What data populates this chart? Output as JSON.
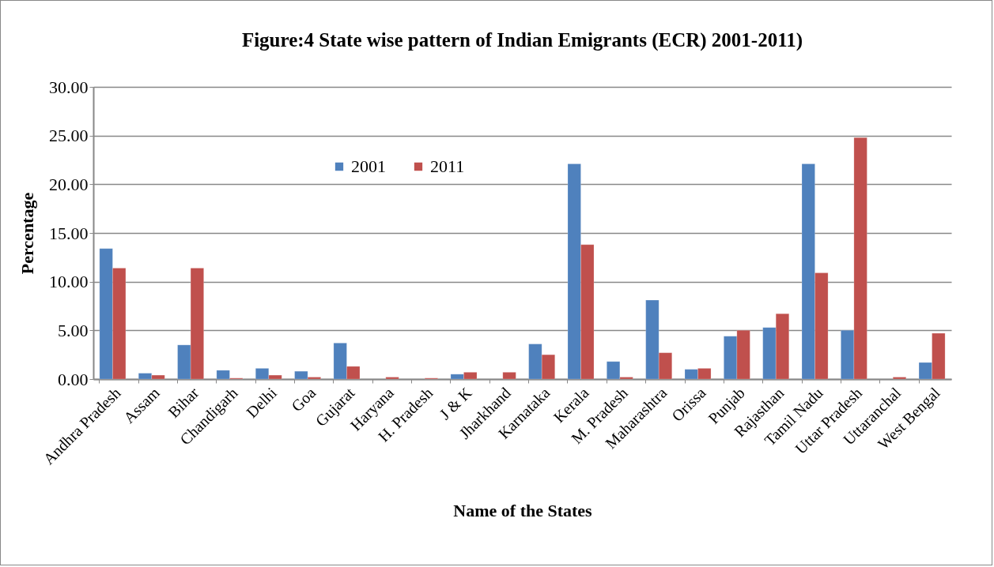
{
  "chart_data": {
    "type": "bar",
    "title": "Figure:4 State wise pattern of Indian Emigrants (ECR) 2001-2011)",
    "xlabel": "Name of the States",
    "ylabel": "Percentage",
    "categories": [
      "Andhra Pradesh",
      "Assam",
      "Bihar",
      "Chandigarh",
      "Delhi",
      "Goa",
      "Gujarat",
      "Haryana",
      "H. Pradesh",
      "J & K",
      "Jharkhand",
      "Karnataka",
      "Kerala",
      "M. Pradesh",
      "Maharashtra",
      "Orissa",
      "Punjab",
      "Rajasthan",
      "Tamil Nadu",
      "Uttar Pradesh",
      "Uttaranchal",
      "West Bengal"
    ],
    "series": [
      {
        "name": "2001",
        "color": "#4f81bd",
        "values": [
          13.4,
          0.6,
          3.5,
          0.9,
          1.1,
          0.8,
          3.7,
          null,
          null,
          0.5,
          null,
          3.6,
          22.1,
          1.8,
          8.1,
          1.0,
          4.4,
          5.3,
          22.1,
          5.0,
          null,
          1.7
        ]
      },
      {
        "name": "2011",
        "color": "#c0504d",
        "values": [
          11.4,
          0.4,
          11.4,
          0.1,
          0.4,
          0.2,
          1.3,
          0.2,
          0.1,
          0.7,
          0.7,
          2.5,
          13.8,
          0.2,
          2.7,
          1.1,
          5.0,
          6.7,
          10.9,
          24.8,
          0.2,
          4.7
        ]
      }
    ],
    "ylim": [
      0,
      30
    ],
    "yticks": [
      {
        "value": 0,
        "label": "0.00"
      },
      {
        "value": 5,
        "label": "5.00"
      },
      {
        "value": 10,
        "label": "10.00"
      },
      {
        "value": 15,
        "label": "15.00"
      },
      {
        "value": 20,
        "label": "20.00"
      },
      {
        "value": 25,
        "label": "25.00"
      },
      {
        "value": 30,
        "label": "30.00"
      }
    ],
    "grid": "y",
    "legend": "top"
  }
}
